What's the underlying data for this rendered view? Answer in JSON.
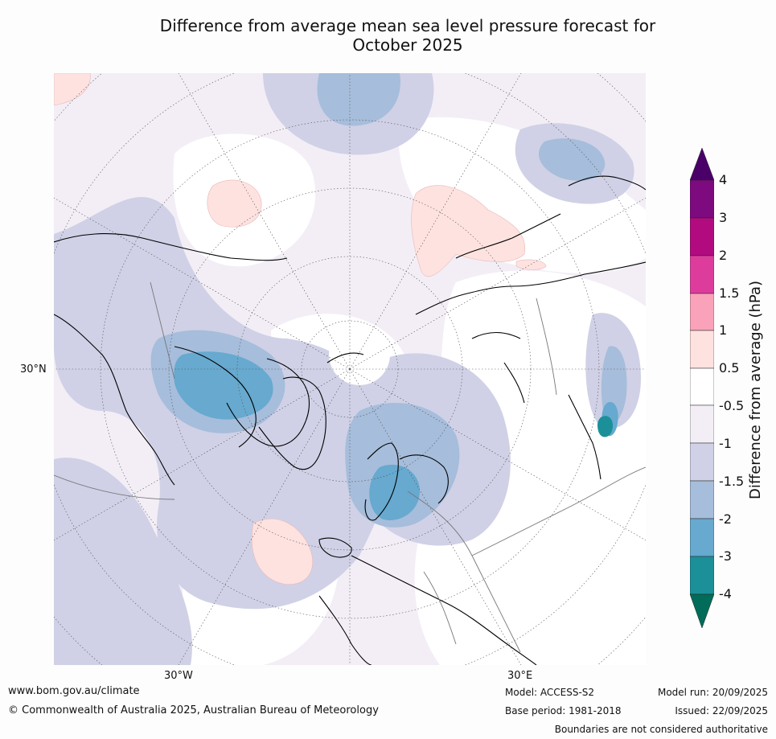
{
  "title": {
    "line1": "Difference from average mean sea level pressure forecast for",
    "line2": "October 2025"
  },
  "map": {
    "projection": "north-polar-stereographic",
    "lat_label_30n": "30°N",
    "lon_label_30w": "30°W",
    "lon_label_30e": "30°E"
  },
  "colorbar": {
    "title": "Difference from average (hPa)",
    "ticks": [
      "4",
      "3",
      "2",
      "1.5",
      "1",
      "0.5",
      "-0.5",
      "-1",
      "-1.5",
      "-2",
      "-3",
      "-4"
    ],
    "colors": {
      "over": "#4a0068",
      "3_4": "#7d0a7e",
      "2_3": "#b10b7f",
      "1.5_2": "#de3c9c",
      "1_1.5": "#f9a2b9",
      "0.5_1": "#fde2e0",
      "m0.5_0.5": "#ffffff",
      "m1_m0.5": "#f3eef6",
      "m1.5_m1": "#d0d1e6",
      "m2_m1.5": "#a6bddb",
      "m3_m2": "#67a9cf",
      "m4_m3": "#1c9099",
      "under": "#016c59"
    }
  },
  "footer": {
    "website": "www.bom.gov.au/climate",
    "copyright": "© Commonwealth of Australia 2025, Australian Bureau of Meteorology",
    "model": "Model: ACCESS-S2",
    "base_period": "Base period: 1981-2018",
    "model_run": "Model run: 20/09/2025",
    "issued": "Issued: 22/09/2025",
    "boundaries_note": "Boundaries are not considered authoritative"
  }
}
